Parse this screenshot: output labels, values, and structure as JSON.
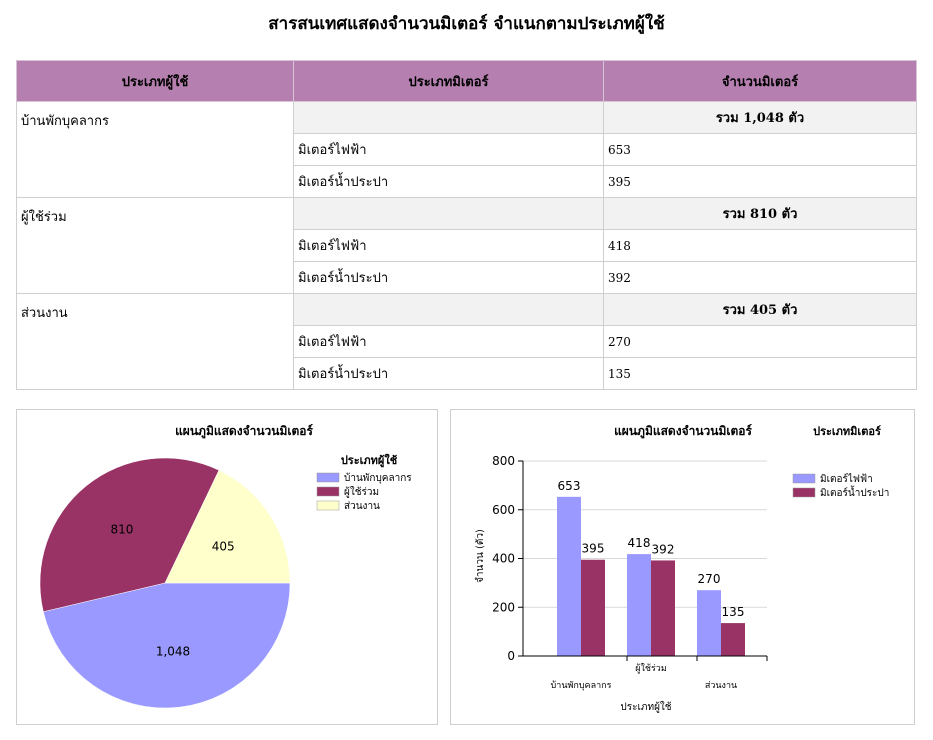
{
  "page": {
    "title": "สารสนเทศแสดงจำนวนมิเตอร์ จำแนกตามประเภทผู้ใช้"
  },
  "table": {
    "headers": [
      "ประเภทผู้ใช้",
      "ประเภทมิเตอร์",
      "จำนวนมิเตอร์"
    ],
    "groups": [
      {
        "name": "บ้านพักบุคลากร",
        "total_label": "รวม 1,048 ตัว",
        "rows": [
          {
            "meter": "มิเตอร์ไฟฟ้า",
            "count": "653"
          },
          {
            "meter": "มิเตอร์น้ำประปา",
            "count": "395"
          }
        ]
      },
      {
        "name": "ผู้ใช้ร่วม",
        "total_label": "รวม 810 ตัว",
        "rows": [
          {
            "meter": "มิเตอร์ไฟฟ้า",
            "count": "418"
          },
          {
            "meter": "มิเตอร์น้ำประปา",
            "count": "392"
          }
        ]
      },
      {
        "name": "ส่วนงาน",
        "total_label": "รวม 405 ตัว",
        "rows": [
          {
            "meter": "มิเตอร์ไฟฟ้า",
            "count": "270"
          },
          {
            "meter": "มิเตอร์น้ำประปา",
            "count": "135"
          }
        ]
      }
    ]
  },
  "chart_data": [
    {
      "type": "pie",
      "title": "แผนภูมิแสดงจำนวนมิเตอร์",
      "legend_title": "ประเภทผู้ใช้",
      "legend_position": "right",
      "categories": [
        "บ้านพักบุคลากร",
        "ผู้ใช้ร่วม",
        "ส่วนงาน"
      ],
      "values": [
        1048,
        810,
        405
      ],
      "value_labels": [
        "1,048",
        "810",
        "405"
      ],
      "colors": [
        "#9999ff",
        "#993366",
        "#ffffcc"
      ]
    },
    {
      "type": "bar",
      "title": "แผนภูมิแสดงจำนวนมิเตอร์",
      "xlabel": "ประเภทผู้ใช้",
      "ylabel": "จำนวน (ตัว)",
      "legend_title": "ประเภทมิเตอร์",
      "legend_position": "right",
      "categories": [
        "บ้านพักบุคลากร",
        "ผู้ใช้ร่วม",
        "ส่วนงาน"
      ],
      "series": [
        {
          "name": "มิเตอร์ไฟฟ้า",
          "values": [
            653,
            418,
            270
          ],
          "color": "#9999ff"
        },
        {
          "name": "มิเตอร์น้ำประปา",
          "values": [
            395,
            392,
            135
          ],
          "color": "#993366"
        }
      ],
      "ylim": [
        0,
        800
      ],
      "yticks": [
        0,
        200,
        400,
        600,
        800
      ],
      "grid": true
    }
  ]
}
